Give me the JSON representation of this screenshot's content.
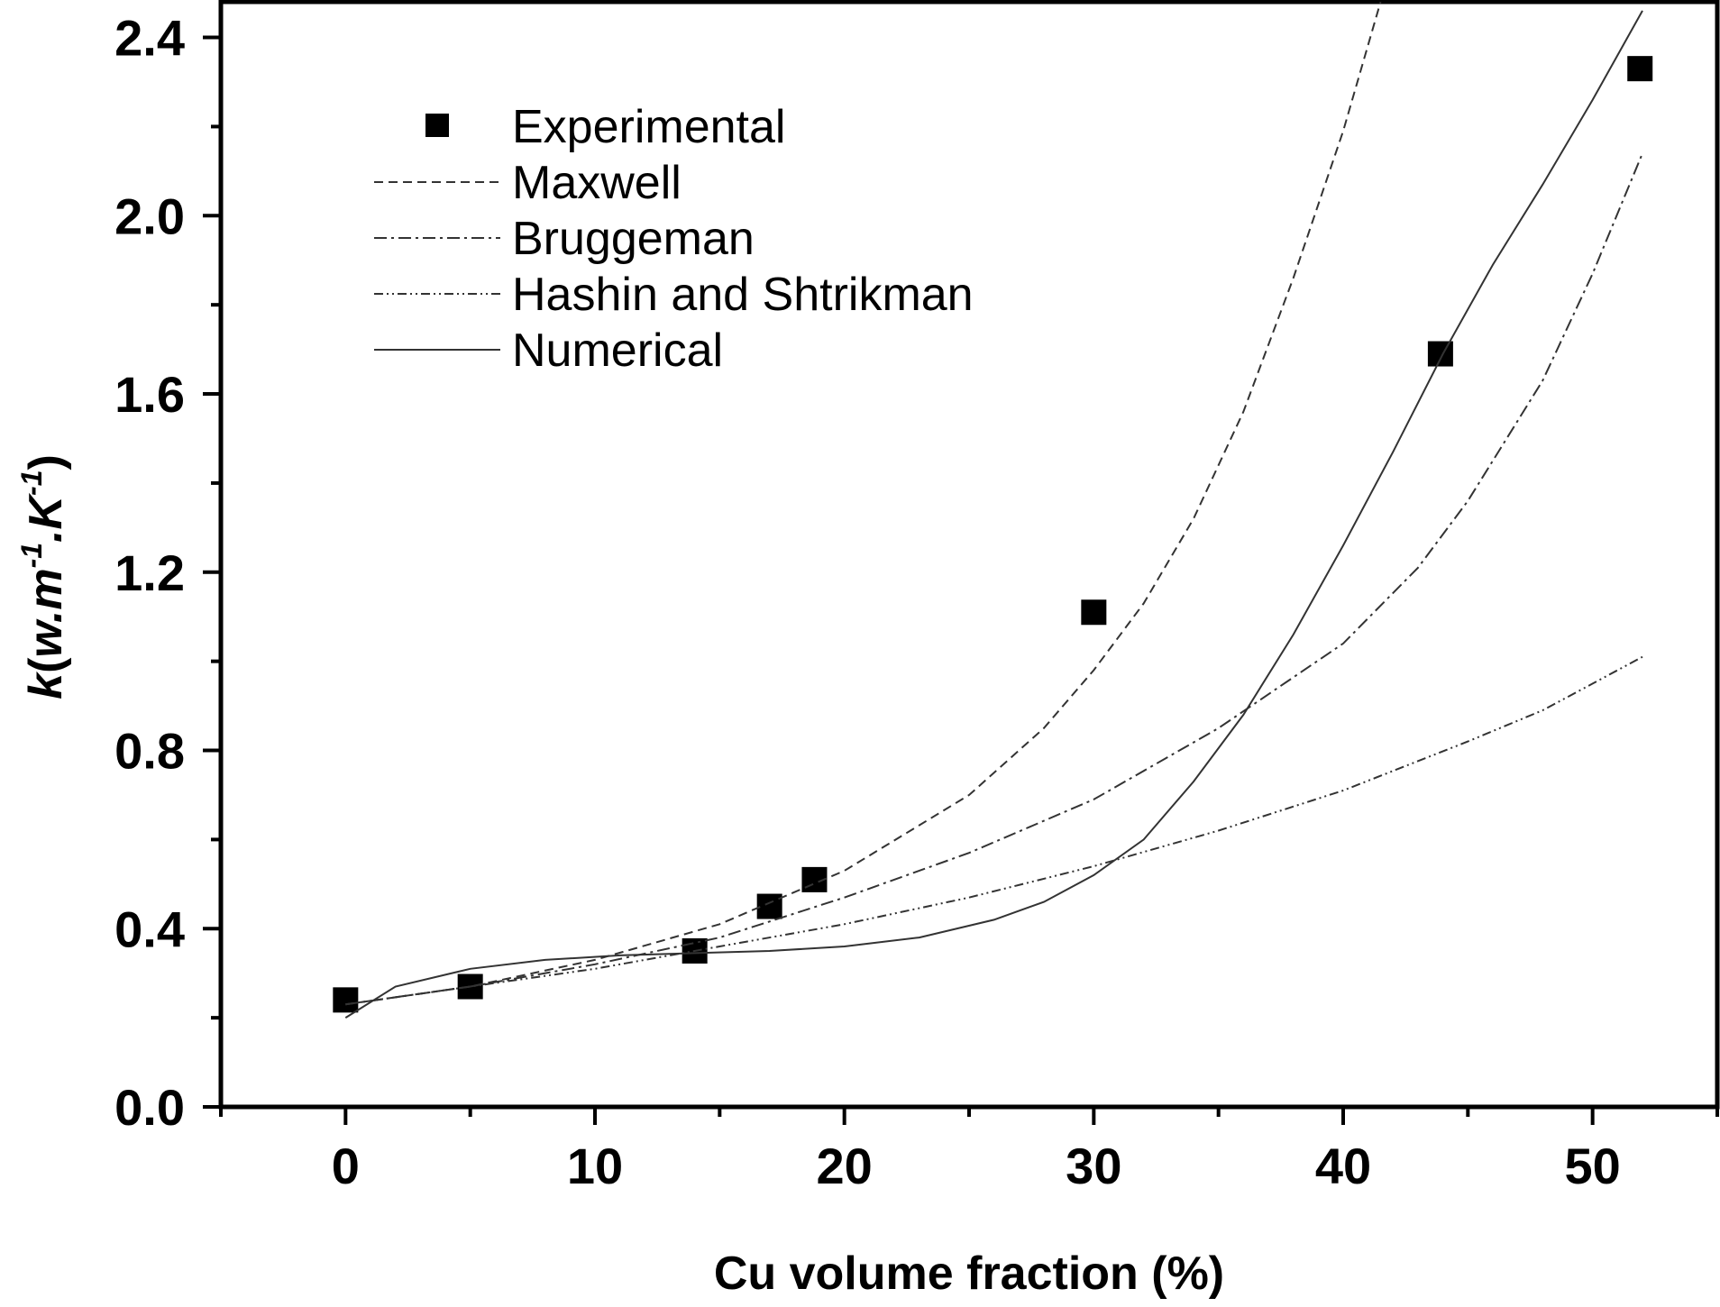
{
  "chart_data": {
    "type": "scatter",
    "title": "",
    "xlabel": "Cu volume fraction (%)",
    "ylabel": {
      "k": "k",
      "open": "(",
      "w": "w.m",
      "exp1": "-1",
      "mid": ".K",
      "exp2": "-1",
      "close": ")"
    },
    "xlim": [
      -5,
      55
    ],
    "ylim": [
      0,
      2.48
    ],
    "x_ticks": [
      "0",
      "10",
      "20",
      "30",
      "40",
      "50"
    ],
    "y_ticks": [
      "0.0",
      "0.4",
      "0.8",
      "1.2",
      "1.6",
      "2.0",
      "2.4"
    ],
    "grid": false,
    "legend_position": "top-left",
    "series": [
      {
        "name": "Experimental",
        "style": "square-markers",
        "points": [
          [
            0,
            0.24
          ],
          [
            5,
            0.27
          ],
          [
            14,
            0.35
          ],
          [
            17,
            0.45
          ],
          [
            18.8,
            0.51
          ],
          [
            30,
            1.11
          ],
          [
            43.9,
            1.69
          ],
          [
            51.9,
            2.33
          ]
        ]
      },
      {
        "name": "Maxwell",
        "style": "dashed",
        "points": [
          [
            0,
            0.23
          ],
          [
            5,
            0.27
          ],
          [
            10,
            0.33
          ],
          [
            15,
            0.41
          ],
          [
            20,
            0.53
          ],
          [
            25,
            0.7
          ],
          [
            28,
            0.85
          ],
          [
            30,
            0.98
          ],
          [
            32,
            1.13
          ],
          [
            34,
            1.32
          ],
          [
            36,
            1.56
          ],
          [
            38,
            1.86
          ],
          [
            40,
            2.19
          ],
          [
            41.5,
            2.48
          ]
        ]
      },
      {
        "name": "Bruggeman",
        "style": "dash-dot",
        "points": [
          [
            0,
            0.23
          ],
          [
            5,
            0.27
          ],
          [
            10,
            0.32
          ],
          [
            15,
            0.38
          ],
          [
            20,
            0.47
          ],
          [
            25,
            0.57
          ],
          [
            30,
            0.69
          ],
          [
            35,
            0.85
          ],
          [
            40,
            1.04
          ],
          [
            43,
            1.21
          ],
          [
            45,
            1.36
          ],
          [
            48,
            1.63
          ],
          [
            50,
            1.87
          ],
          [
            52,
            2.14
          ]
        ]
      },
      {
        "name": "Hashin and Shtrikman",
        "style": "dash-dot-dot",
        "points": [
          [
            0,
            0.23
          ],
          [
            5,
            0.27
          ],
          [
            10,
            0.31
          ],
          [
            15,
            0.36
          ],
          [
            20,
            0.41
          ],
          [
            25,
            0.47
          ],
          [
            30,
            0.54
          ],
          [
            35,
            0.62
          ],
          [
            40,
            0.71
          ],
          [
            45,
            0.82
          ],
          [
            48,
            0.89
          ],
          [
            50,
            0.95
          ],
          [
            52,
            1.01
          ]
        ]
      },
      {
        "name": "Numerical",
        "style": "solid",
        "points": [
          [
            0,
            0.2
          ],
          [
            2,
            0.27
          ],
          [
            5,
            0.31
          ],
          [
            8,
            0.33
          ],
          [
            11,
            0.34
          ],
          [
            14,
            0.345
          ],
          [
            17,
            0.35
          ],
          [
            20,
            0.36
          ],
          [
            23,
            0.38
          ],
          [
            26,
            0.42
          ],
          [
            28,
            0.46
          ],
          [
            30,
            0.52
          ],
          [
            32,
            0.6
          ],
          [
            34,
            0.73
          ],
          [
            36,
            0.88
          ],
          [
            38,
            1.06
          ],
          [
            40,
            1.26
          ],
          [
            42,
            1.47
          ],
          [
            44,
            1.69
          ],
          [
            46,
            1.89
          ],
          [
            48,
            2.07
          ],
          [
            50,
            2.26
          ],
          [
            52,
            2.46
          ]
        ]
      }
    ]
  }
}
